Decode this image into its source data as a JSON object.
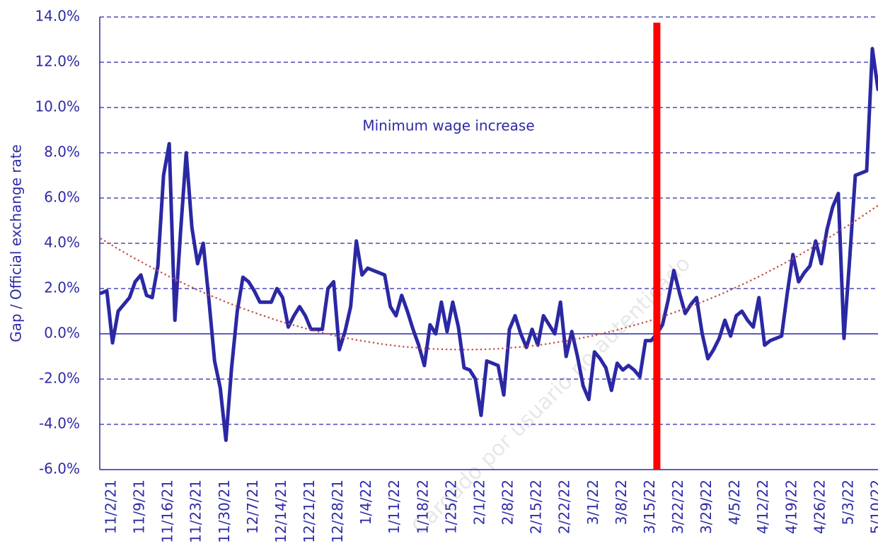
{
  "chart_data": {
    "type": "line",
    "y_label": "Gap / Official exchange rate",
    "annotation": {
      "text": "Minimum wage increase",
      "line_at": 98,
      "line_color": "#ff0000"
    },
    "watermark": "Cargado por usuario no autenticado",
    "categories": [
      null,
      "11/2/21",
      null,
      null,
      null,
      null,
      "11/9/21",
      null,
      null,
      null,
      null,
      "11/16/21",
      null,
      null,
      null,
      null,
      "11/23/21",
      null,
      null,
      null,
      null,
      "11/30/21",
      null,
      null,
      null,
      null,
      "12/7/21",
      null,
      null,
      null,
      null,
      "12/14/21",
      null,
      null,
      null,
      null,
      "12/21/21",
      null,
      null,
      null,
      null,
      "12/28/21",
      null,
      null,
      null,
      null,
      "1/4/22",
      null,
      null,
      null,
      null,
      "1/11/22",
      null,
      null,
      null,
      null,
      "1/18/22",
      null,
      null,
      null,
      null,
      "1/25/22",
      null,
      null,
      null,
      null,
      "2/1/22",
      null,
      null,
      null,
      null,
      "2/8/22",
      null,
      null,
      null,
      null,
      "2/15/22",
      null,
      null,
      null,
      null,
      "2/22/22",
      null,
      null,
      null,
      null,
      "3/1/22",
      null,
      null,
      null,
      null,
      "3/8/22",
      null,
      null,
      null,
      null,
      "3/15/22",
      null,
      null,
      null,
      null,
      "3/22/22",
      null,
      null,
      null,
      null,
      "3/29/22",
      null,
      null,
      null,
      null,
      "4/5/22",
      null,
      null,
      null,
      null,
      "4/12/22",
      null,
      null,
      null,
      null,
      "4/19/22",
      null,
      null,
      null,
      null,
      "4/26/22",
      null,
      null,
      null,
      null,
      "5/3/22",
      null,
      null,
      null,
      null,
      "5/10/22",
      null
    ],
    "series": [
      {
        "color": "#2b28a4",
        "values": [
          1.8,
          1.9,
          -0.4,
          1.0,
          1.3,
          1.6,
          2.3,
          2.6,
          1.7,
          1.6,
          3.0,
          7.0,
          8.4,
          0.6,
          4.5,
          8.0,
          4.7,
          3.1,
          4.0,
          1.5,
          -1.2,
          -2.4,
          -4.7,
          -1.5,
          1.0,
          2.5,
          2.3,
          1.9,
          1.4,
          1.4,
          1.4,
          2.0,
          1.6,
          0.3,
          0.8,
          1.2,
          0.8,
          0.2,
          0.2,
          0.2,
          2.0,
          2.3,
          -0.7,
          0.1,
          1.2,
          4.1,
          2.6,
          2.9,
          2.8,
          2.7,
          2.6,
          1.2,
          0.8,
          1.7,
          1.0,
          0.2,
          -0.5,
          -1.4,
          0.4,
          0.0,
          1.4,
          0.1,
          1.4,
          0.3,
          -1.5,
          -1.6,
          -2.0,
          -3.6,
          -1.2,
          -1.3,
          -1.4,
          -2.7,
          0.2,
          0.8,
          0.0,
          -0.6,
          0.2,
          -0.5,
          0.8,
          0.4,
          0.0,
          1.4,
          -1.0,
          0.1,
          -1.0,
          -2.3,
          -2.9,
          -0.8,
          -1.1,
          -1.5,
          -2.5,
          -1.3,
          -1.6,
          -1.4,
          -1.6,
          -1.9,
          -0.3,
          -0.3,
          0.0,
          0.4,
          1.5,
          2.8,
          1.8,
          0.9,
          1.3,
          1.6,
          0.0,
          -1.1,
          -0.7,
          -0.2,
          0.6,
          -0.1,
          0.8,
          1.0,
          0.6,
          0.3,
          1.6,
          -0.5,
          -0.3,
          -0.2,
          -0.1,
          1.8,
          3.5,
          2.3,
          2.7,
          3.0,
          4.1,
          3.1,
          4.6,
          5.6,
          6.2,
          -0.2,
          3.3,
          7.0,
          7.1,
          7.2,
          12.6,
          10.8
        ]
      },
      {
        "color": "#c0504d",
        "style": "dotted",
        "values": [
          4.2,
          4.05,
          3.9,
          3.75,
          3.61,
          3.46,
          3.32,
          3.19,
          3.05,
          2.92,
          2.79,
          2.66,
          2.53,
          2.41,
          2.29,
          2.17,
          2.06,
          1.94,
          1.83,
          1.72,
          1.62,
          1.51,
          1.41,
          1.31,
          1.21,
          1.12,
          1.03,
          0.94,
          0.85,
          0.77,
          0.68,
          0.6,
          0.52,
          0.45,
          0.38,
          0.31,
          0.24,
          0.17,
          0.11,
          0.05,
          -0.01,
          -0.07,
          -0.12,
          -0.17,
          -0.22,
          -0.27,
          -0.31,
          -0.35,
          -0.39,
          -0.43,
          -0.47,
          -0.5,
          -0.53,
          -0.56,
          -0.58,
          -0.6,
          -0.62,
          -0.64,
          -0.66,
          -0.67,
          -0.68,
          -0.69,
          -0.69,
          -0.7,
          -0.7,
          -0.7,
          -0.69,
          -0.69,
          -0.68,
          -0.67,
          -0.66,
          -0.64,
          -0.62,
          -0.6,
          -0.58,
          -0.56,
          -0.53,
          -0.5,
          -0.47,
          -0.43,
          -0.39,
          -0.35,
          -0.31,
          -0.27,
          -0.22,
          -0.17,
          -0.12,
          -0.07,
          -0.01,
          0.05,
          0.11,
          0.17,
          0.24,
          0.31,
          0.38,
          0.45,
          0.52,
          0.6,
          0.68,
          0.77,
          0.85,
          0.94,
          1.03,
          1.12,
          1.21,
          1.31,
          1.41,
          1.51,
          1.62,
          1.72,
          1.83,
          1.94,
          2.06,
          2.17,
          2.29,
          2.41,
          2.53,
          2.66,
          2.79,
          2.92,
          3.05,
          3.19,
          3.32,
          3.46,
          3.61,
          3.75,
          3.9,
          4.05,
          4.2,
          4.35,
          4.51,
          4.67,
          4.83,
          4.99,
          5.16,
          5.33,
          5.5,
          5.67
        ]
      }
    ],
    "ylim": [
      -6,
      14
    ],
    "yticks": [
      {
        "value": -6,
        "label": "-6.0%"
      },
      {
        "value": -4,
        "label": "-4.0%"
      },
      {
        "value": -2,
        "label": "-2.0%"
      },
      {
        "value": 0,
        "label": "0.0%"
      },
      {
        "value": 2,
        "label": "2.0%"
      },
      {
        "value": 4,
        "label": "4.0%"
      },
      {
        "value": 6,
        "label": "6.0%"
      },
      {
        "value": 8,
        "label": "8.0%"
      },
      {
        "value": 10,
        "label": "10.0%"
      },
      {
        "value": 12,
        "label": "12.0%"
      },
      {
        "value": 14,
        "label": "14.0%"
      }
    ],
    "grid": true
  }
}
